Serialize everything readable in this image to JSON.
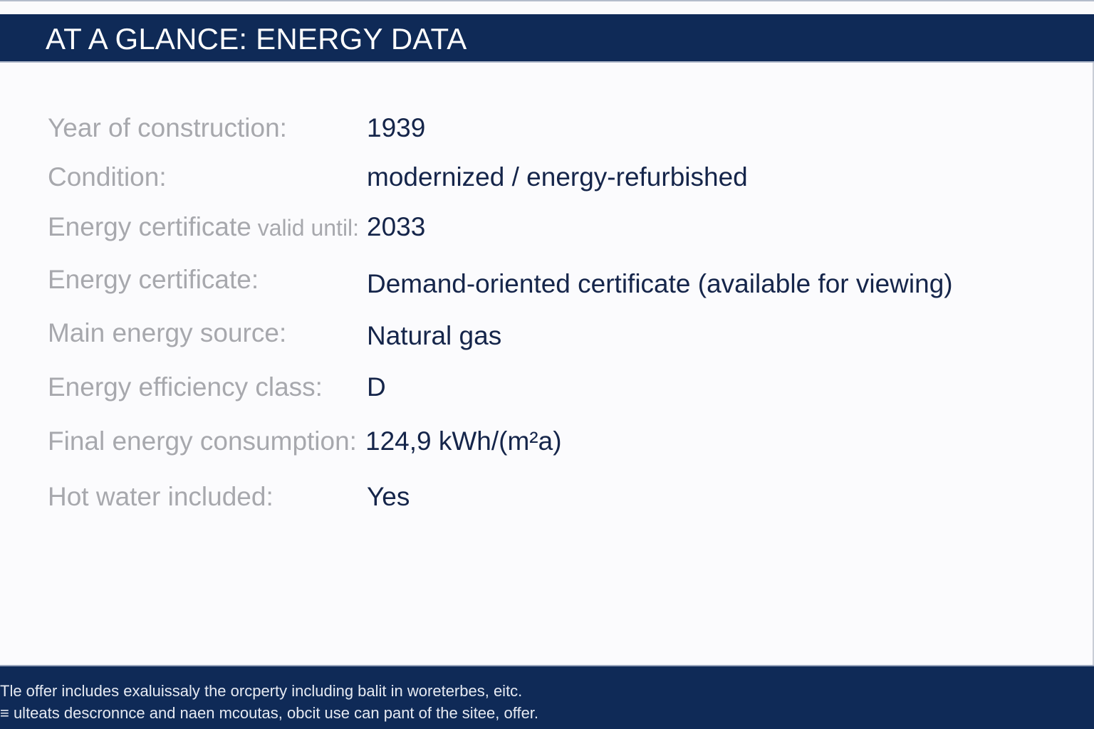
{
  "header": {
    "title": "AT A GLANCE: ENERGY DATA"
  },
  "energy_data": [
    {
      "label": "Year of construction:",
      "value": "1939"
    },
    {
      "label": "Condition:",
      "value": "modernized / energy-refurbished"
    },
    {
      "label": "Energy certificate",
      "label_suffix": " valid until:",
      "value": "2033"
    },
    {
      "label": "Energy certificate:",
      "value": "Demand-oriented certificate (available for viewing)"
    },
    {
      "label": "Main energy source:",
      "value": "Natural gas"
    },
    {
      "label": "Energy efficiency class:",
      "value": "D"
    },
    {
      "label": "Final energy consumption:",
      "value": "124,9 kWh/(m²a)"
    },
    {
      "label": "Hot water included:",
      "value": "Yes"
    }
  ],
  "footer": {
    "line1": "Tle offer includes exaluissaly the orcperty including balit in woreterbes, eitc.",
    "line2": "≡ ulteats descronnce and naen mcoutas, obcit use can pant of the sitee, offer."
  }
}
